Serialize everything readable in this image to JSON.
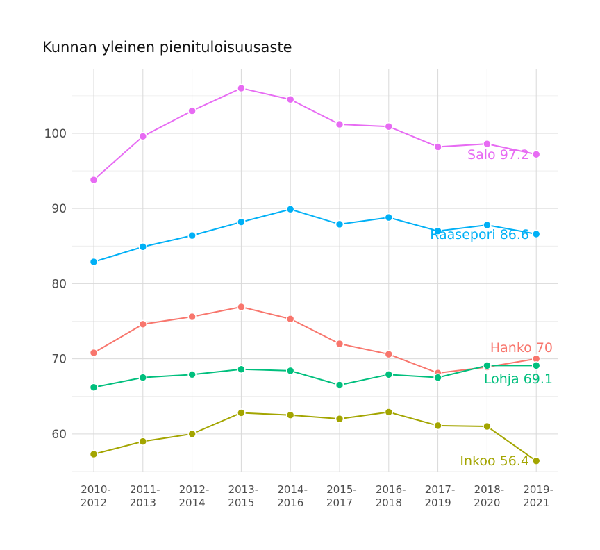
{
  "chart_data": {
    "type": "line",
    "title": "Kunnan yleinen pienituloisuusaste",
    "xlabel": "",
    "ylabel": "",
    "categories": [
      "2010-2012",
      "2011-2013",
      "2012-2014",
      "2013-2015",
      "2014-2016",
      "2015-2017",
      "2016-2018",
      "2017-2019",
      "2018-2020",
      "2019-2021"
    ],
    "ylim": [
      54.9,
      108.5
    ],
    "yticks": [
      60,
      70,
      80,
      90,
      100
    ],
    "grid": true,
    "series": [
      {
        "name": "Salo",
        "end_label": "Salo 97.2",
        "color": "#E76BF3",
        "values": [
          93.8,
          99.6,
          103.0,
          106.0,
          104.5,
          101.2,
          100.9,
          98.2,
          98.6,
          97.2
        ]
      },
      {
        "name": "Raasepori",
        "end_label": "Raasepori 86.6",
        "color": "#00B0F6",
        "values": [
          82.9,
          84.9,
          86.4,
          88.2,
          89.9,
          87.9,
          88.8,
          87.0,
          87.8,
          86.6
        ]
      },
      {
        "name": "Hanko",
        "end_label": "Hanko 70",
        "color": "#F8766D",
        "values": [
          70.8,
          74.6,
          75.6,
          76.9,
          75.3,
          72.0,
          70.6,
          68.1,
          68.9,
          70.0
        ]
      },
      {
        "name": "Lohja",
        "end_label": "Lohja 69.1",
        "color": "#00BF7D",
        "values": [
          66.2,
          67.5,
          67.9,
          68.6,
          68.4,
          66.5,
          67.9,
          67.5,
          69.1,
          69.1
        ]
      },
      {
        "name": "Inkoo",
        "end_label": "Inkoo 56.4",
        "color": "#A3A500",
        "values": [
          57.3,
          59.0,
          60.0,
          62.8,
          62.5,
          62.0,
          62.9,
          61.1,
          61.0,
          56.4
        ]
      }
    ]
  }
}
